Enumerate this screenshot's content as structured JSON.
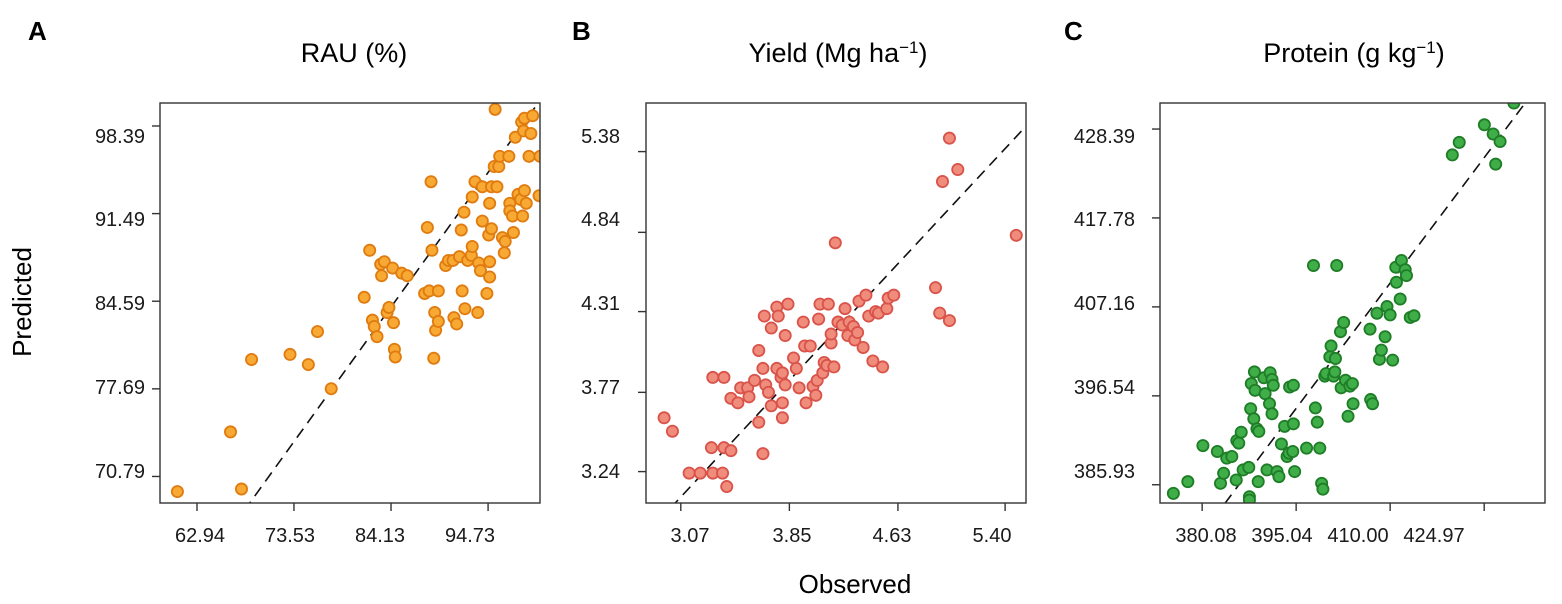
{
  "figure": {
    "ylabel": "Predicted",
    "xlabel": "Observed"
  },
  "chart_data": [
    {
      "type": "scatter",
      "panel": "A",
      "title": "RAU (%)",
      "title_parts": [
        "RAU (%)",
        "",
        ""
      ],
      "color": "#f7a933",
      "edge_color": "#e07b10",
      "xlim": [
        58.9,
        100.4
      ],
      "ylim": [
        68.7,
        100.2
      ],
      "xticks": [
        62.94,
        73.53,
        84.13,
        94.73
      ],
      "xtick_labels": [
        "62.94",
        "73.53",
        "84.13",
        "94.73"
      ],
      "yticks": [
        70.79,
        77.69,
        84.59,
        91.49,
        98.39
      ],
      "ytick_labels": [
        "70.79",
        "77.69",
        "84.59",
        "91.49",
        "98.39"
      ],
      "ref_line": "1:1",
      "points": [
        [
          60.8,
          69.6
        ],
        [
          67.8,
          69.8
        ],
        [
          66.6,
          74.3
        ],
        [
          68.9,
          80.0
        ],
        [
          73.1,
          80.4
        ],
        [
          75.1,
          79.6
        ],
        [
          76.1,
          82.2
        ],
        [
          77.6,
          77.7
        ],
        [
          81.2,
          84.9
        ],
        [
          81.8,
          88.6
        ],
        [
          82.1,
          83.1
        ],
        [
          82.3,
          82.6
        ],
        [
          82.6,
          81.8
        ],
        [
          83.0,
          87.5
        ],
        [
          83.1,
          86.6
        ],
        [
          83.4,
          87.7
        ],
        [
          83.7,
          83.7
        ],
        [
          83.9,
          84.1
        ],
        [
          84.3,
          87.2
        ],
        [
          84.4,
          82.9
        ],
        [
          84.5,
          80.8
        ],
        [
          84.6,
          80.2
        ],
        [
          85.3,
          86.8
        ],
        [
          85.9,
          86.6
        ],
        [
          87.8,
          85.2
        ],
        [
          88.1,
          90.4
        ],
        [
          88.3,
          85.4
        ],
        [
          88.5,
          94.0
        ],
        [
          88.6,
          88.6
        ],
        [
          88.9,
          83.7
        ],
        [
          88.8,
          80.1
        ],
        [
          89.0,
          82.3
        ],
        [
          89.3,
          85.4
        ],
        [
          89.3,
          83.0
        ],
        [
          90.1,
          87.4
        ],
        [
          90.4,
          87.8
        ],
        [
          90.9,
          87.8
        ],
        [
          91.0,
          83.3
        ],
        [
          91.3,
          82.8
        ],
        [
          91.6,
          88.1
        ],
        [
          91.8,
          90.2
        ],
        [
          91.9,
          85.4
        ],
        [
          92.1,
          91.6
        ],
        [
          92.2,
          84.0
        ],
        [
          92.5,
          87.8
        ],
        [
          92.9,
          88.2
        ],
        [
          93.0,
          88.9
        ],
        [
          93.0,
          92.8
        ],
        [
          93.3,
          94.0
        ],
        [
          93.6,
          83.7
        ],
        [
          93.7,
          87.6
        ],
        [
          93.9,
          87.0
        ],
        [
          94.1,
          90.9
        ],
        [
          94.1,
          93.6
        ],
        [
          94.6,
          85.2
        ],
        [
          94.8,
          89.8
        ],
        [
          94.9,
          92.3
        ],
        [
          94.9,
          87.7
        ],
        [
          94.9,
          86.5
        ],
        [
          95.1,
          93.6
        ],
        [
          95.1,
          90.3
        ],
        [
          95.4,
          95.2
        ],
        [
          95.5,
          99.7
        ],
        [
          95.7,
          93.6
        ],
        [
          95.9,
          95.2
        ],
        [
          96.0,
          96.0
        ],
        [
          96.3,
          89.6
        ],
        [
          96.5,
          88.4
        ],
        [
          96.6,
          89.3
        ],
        [
          97.0,
          96.0
        ],
        [
          97.1,
          92.3
        ],
        [
          97.1,
          91.7
        ],
        [
          97.4,
          91.3
        ],
        [
          97.5,
          90.0
        ],
        [
          97.7,
          97.5
        ],
        [
          98.0,
          93.0
        ],
        [
          98.3,
          92.6
        ],
        [
          98.4,
          98.7
        ],
        [
          98.5,
          91.3
        ],
        [
          98.6,
          98.0
        ],
        [
          98.7,
          93.3
        ],
        [
          98.7,
          99.0
        ],
        [
          98.9,
          92.3
        ],
        [
          99.2,
          96.0
        ],
        [
          99.4,
          97.8
        ],
        [
          99.6,
          99.2
        ],
        [
          100.3,
          92.9
        ],
        [
          100.4,
          96.0
        ]
      ]
    },
    {
      "type": "scatter",
      "panel": "B",
      "title": "Yield (Mg ha−1)",
      "title_parts": [
        "Yield (Mg ha",
        "−1",
        ")"
      ],
      "color": "#f08c7c",
      "edge_color": "#d9534a",
      "xlim": [
        2.82,
        5.55
      ],
      "ylim": [
        3.03,
        5.705
      ],
      "xticks": [
        3.07,
        3.85,
        4.63,
        5.4
      ],
      "xtick_labels": [
        "3.07",
        "3.85",
        "4.63",
        "5.40"
      ],
      "yticks": [
        3.24,
        3.77,
        4.31,
        4.84,
        5.38
      ],
      "ytick_labels": [
        "3.24",
        "3.77",
        "4.31",
        "4.84",
        "5.38"
      ],
      "ref_line": "1:1",
      "points": [
        [
          2.95,
          3.6
        ],
        [
          3.01,
          3.51
        ],
        [
          3.13,
          3.23
        ],
        [
          3.21,
          3.23
        ],
        [
          3.29,
          3.4
        ],
        [
          3.3,
          3.23
        ],
        [
          3.3,
          3.87
        ],
        [
          3.37,
          3.23
        ],
        [
          3.38,
          3.87
        ],
        [
          3.4,
          3.14
        ],
        [
          3.38,
          3.4
        ],
        [
          3.43,
          3.38
        ],
        [
          3.43,
          3.73
        ],
        [
          3.48,
          3.7
        ],
        [
          3.5,
          3.8
        ],
        [
          3.55,
          3.8
        ],
        [
          3.56,
          3.74
        ],
        [
          3.6,
          3.85
        ],
        [
          3.63,
          4.05
        ],
        [
          3.63,
          3.57
        ],
        [
          3.66,
          3.93
        ],
        [
          3.66,
          3.36
        ],
        [
          3.68,
          3.82
        ],
        [
          3.67,
          4.28
        ],
        [
          3.7,
          3.77
        ],
        [
          3.72,
          4.2
        ],
        [
          3.72,
          3.68
        ],
        [
          3.76,
          3.93
        ],
        [
          3.76,
          4.34
        ],
        [
          3.77,
          4.28
        ],
        [
          3.79,
          3.87
        ],
        [
          3.8,
          3.7
        ],
        [
          3.8,
          3.9
        ],
        [
          3.8,
          3.6
        ],
        [
          3.82,
          3.82
        ],
        [
          3.82,
          4.15
        ],
        [
          3.84,
          4.36
        ],
        [
          3.88,
          4.0
        ],
        [
          3.9,
          3.93
        ],
        [
          3.92,
          3.8
        ],
        [
          3.95,
          4.24
        ],
        [
          3.96,
          4.08
        ],
        [
          3.97,
          3.7
        ],
        [
          4.0,
          4.08
        ],
        [
          4.02,
          3.81
        ],
        [
          4.04,
          3.75
        ],
        [
          4.05,
          3.85
        ],
        [
          4.06,
          4.26
        ],
        [
          4.07,
          4.36
        ],
        [
          4.09,
          3.9
        ],
        [
          4.1,
          3.97
        ],
        [
          4.12,
          3.95
        ],
        [
          4.13,
          4.36
        ],
        [
          4.15,
          4.1
        ],
        [
          4.15,
          4.16
        ],
        [
          4.17,
          3.94
        ],
        [
          4.18,
          4.77
        ],
        [
          4.2,
          4.24
        ],
        [
          4.2,
          4.24
        ],
        [
          4.23,
          4.22
        ],
        [
          4.25,
          4.33
        ],
        [
          4.27,
          4.15
        ],
        [
          4.28,
          4.24
        ],
        [
          4.31,
          4.21
        ],
        [
          4.32,
          4.12
        ],
        [
          4.34,
          4.17
        ],
        [
          4.35,
          4.38
        ],
        [
          4.38,
          4.07
        ],
        [
          4.4,
          4.42
        ],
        [
          4.42,
          4.28
        ],
        [
          4.45,
          3.98
        ],
        [
          4.47,
          4.31
        ],
        [
          4.49,
          4.3
        ],
        [
          4.52,
          3.94
        ],
        [
          4.55,
          4.33
        ],
        [
          4.56,
          4.4
        ],
        [
          4.6,
          4.42
        ],
        [
          4.9,
          4.47
        ],
        [
          4.93,
          4.3
        ],
        [
          5.0,
          4.25
        ],
        [
          5.0,
          5.47
        ],
        [
          4.95,
          5.18
        ],
        [
          5.06,
          5.26
        ],
        [
          5.48,
          4.82
        ]
      ]
    },
    {
      "type": "scatter",
      "panel": "C",
      "title": "Protein (g kg−1)",
      "title_parts": [
        "Protein (g kg",
        "−1",
        ")"
      ],
      "color": "#3fae49",
      "edge_color": "#1e7d26",
      "xlim": [
        373.37,
        434.65
      ],
      "ylim": [
        383.75,
        431.5
      ],
      "xticks": [
        380.08,
        395.04,
        410.0,
        424.97
      ],
      "xtick_labels": [
        "380.08",
        "395.04",
        "410.00",
        "424.97"
      ],
      "yticks": [
        385.93,
        396.54,
        407.16,
        417.78,
        428.39
      ],
      "ytick_labels": [
        "385.93",
        "396.54",
        "407.16",
        "417.78",
        "428.39"
      ],
      "ref_line": "1:1",
      "points": [
        [
          375.5,
          384.9
        ],
        [
          377.8,
          386.3
        ],
        [
          380.2,
          390.6
        ],
        [
          382.5,
          389.9
        ],
        [
          383.0,
          386.1
        ],
        [
          383.5,
          387.3
        ],
        [
          384.0,
          389.1
        ],
        [
          384.8,
          389.3
        ],
        [
          385.5,
          386.5
        ],
        [
          385.6,
          391.2
        ],
        [
          385.9,
          390.9
        ],
        [
          386.3,
          392.2
        ],
        [
          386.6,
          387.7
        ],
        [
          387.5,
          388.0
        ],
        [
          387.6,
          384.5
        ],
        [
          387.6,
          384.1
        ],
        [
          387.8,
          395.0
        ],
        [
          387.9,
          398.0
        ],
        [
          388.3,
          393.8
        ],
        [
          388.8,
          392.6
        ],
        [
          388.4,
          399.4
        ],
        [
          388.5,
          397.2
        ],
        [
          389.0,
          386.3
        ],
        [
          389.1,
          392.3
        ],
        [
          389.9,
          398.7
        ],
        [
          390.1,
          396.8
        ],
        [
          390.4,
          387.7
        ],
        [
          390.8,
          395.6
        ],
        [
          390.9,
          399.3
        ],
        [
          391.2,
          394.4
        ],
        [
          391.2,
          398.5
        ],
        [
          391.4,
          397.8
        ],
        [
          392.0,
          387.5
        ],
        [
          392.3,
          386.9
        ],
        [
          392.7,
          390.8
        ],
        [
          393.2,
          392.9
        ],
        [
          393.6,
          389.3
        ],
        [
          393.9,
          389.7
        ],
        [
          394.0,
          397.6
        ],
        [
          394.6,
          397.8
        ],
        [
          394.6,
          393.2
        ],
        [
          394.8,
          387.5
        ],
        [
          394.5,
          389.9
        ],
        [
          396.7,
          390.3
        ],
        [
          397.8,
          412.1
        ],
        [
          398.1,
          395.1
        ],
        [
          398.4,
          393.4
        ],
        [
          398.8,
          390.3
        ],
        [
          399.1,
          386.1
        ],
        [
          399.3,
          385.4
        ],
        [
          399.6,
          398.9
        ],
        [
          399.8,
          399.2
        ],
        [
          400.6,
          402.5
        ],
        [
          400.4,
          401.2
        ],
        [
          401.0,
          398.9
        ],
        [
          401.2,
          399.4
        ],
        [
          401.3,
          401.0
        ],
        [
          401.5,
          412.1
        ],
        [
          402.2,
          397.5
        ],
        [
          402.1,
          404.2
        ],
        [
          402.6,
          405.3
        ],
        [
          402.9,
          398.4
        ],
        [
          403.3,
          394.1
        ],
        [
          403.6,
          397.7
        ],
        [
          404.0,
          398.0
        ],
        [
          404.1,
          395.6
        ],
        [
          406.8,
          404.5
        ],
        [
          406.9,
          396.1
        ],
        [
          407.2,
          395.6
        ],
        [
          407.9,
          406.4
        ],
        [
          408.3,
          400.9
        ],
        [
          408.6,
          402.0
        ],
        [
          409.2,
          403.6
        ],
        [
          409.5,
          407.2
        ],
        [
          410.0,
          406.2
        ],
        [
          410.4,
          400.8
        ],
        [
          410.9,
          411.9
        ],
        [
          411.0,
          410.1
        ],
        [
          411.6,
          408.1
        ],
        [
          411.8,
          412.7
        ],
        [
          412.4,
          411.6
        ],
        [
          412.6,
          410.9
        ],
        [
          413.2,
          405.9
        ],
        [
          413.8,
          406.1
        ],
        [
          419.9,
          425.3
        ],
        [
          421.0,
          426.8
        ],
        [
          429.7,
          431.5
        ],
        [
          430.4,
          433.0
        ],
        [
          425.9,
          432.4
        ],
        [
          425.0,
          428.9
        ],
        [
          426.4,
          427.8
        ],
        [
          427.5,
          426.9
        ],
        [
          426.8,
          424.2
        ]
      ]
    }
  ]
}
